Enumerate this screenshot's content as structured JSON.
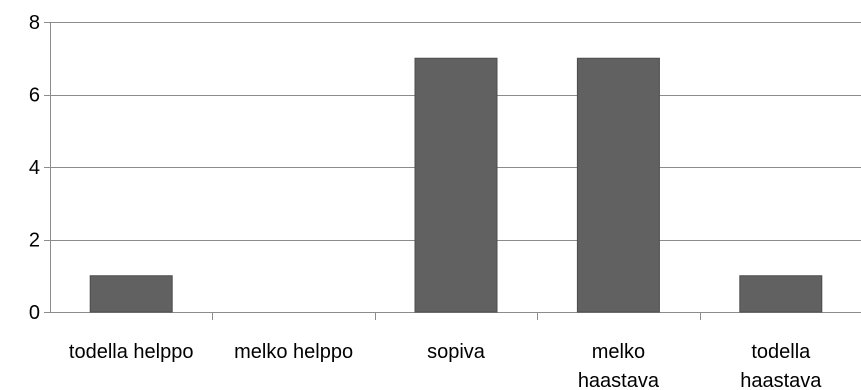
{
  "chart_data": {
    "type": "bar",
    "categories": [
      [
        "todella helppo"
      ],
      [
        "melko helppo"
      ],
      [
        "sopiva"
      ],
      [
        "melko",
        "haastava"
      ],
      [
        "todella",
        "haastava"
      ]
    ],
    "values": [
      1,
      0,
      7,
      7,
      1
    ],
    "ylim": [
      0,
      8
    ],
    "yticks": [
      "0",
      "2",
      "4",
      "6",
      "8"
    ],
    "grid": true,
    "legend": "none",
    "bar_color": "#616161",
    "bar_stroke": "#4d4d4d",
    "grid_color": "#8c8c8c",
    "axis_color": "#8c8c8c"
  }
}
